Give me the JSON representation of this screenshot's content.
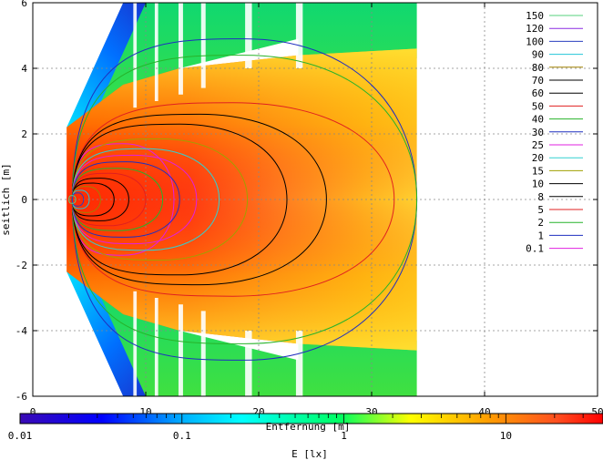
{
  "chart_data": {
    "type": "contour",
    "xlabel": "Entfernung [m]",
    "ylabel": "seitlich [m]",
    "xlim": [
      0,
      50
    ],
    "ylim": [
      -6,
      6
    ],
    "x_ticks": [
      0,
      10,
      20,
      30,
      40,
      50
    ],
    "y_ticks": [
      -6,
      -4,
      -2,
      0,
      2,
      4,
      6
    ],
    "grid": true,
    "legend_position": "top-right",
    "legend": [
      {
        "label": "150",
        "color": "#55d27e"
      },
      {
        "label": "120",
        "color": "#8a2be2"
      },
      {
        "label": "100",
        "color": "#2a3fbf"
      },
      {
        "label": "90",
        "color": "#22c6d8"
      },
      {
        "label": "80",
        "color": "#a08000"
      },
      {
        "label": "70",
        "color": "#000000"
      },
      {
        "label": "60",
        "color": "#000000"
      },
      {
        "label": "50",
        "color": "#e02020"
      },
      {
        "label": "40",
        "color": "#27b32a"
      },
      {
        "label": "30",
        "color": "#1f2fbf"
      },
      {
        "label": "25",
        "color": "#e020e0"
      },
      {
        "label": "20",
        "color": "#30d0d0"
      },
      {
        "label": "15",
        "color": "#a0a000"
      },
      {
        "label": "10",
        "color": "#000000"
      },
      {
        "label": "8",
        "color": "#000000"
      },
      {
        "label": "5",
        "color": "#e02020"
      },
      {
        "label": "2",
        "color": "#27b32a"
      },
      {
        "label": "1",
        "color": "#1f2fbf"
      },
      {
        "label": "0.1",
        "color": "#e020e0"
      }
    ],
    "colorbar": {
      "label": "E [lx]",
      "scale": "log",
      "tick_labels": [
        "0.01",
        "0.1",
        "1",
        "10"
      ],
      "colors": [
        "#3a0ab4",
        "#0000ff",
        "#00bfff",
        "#00ffff",
        "#00ff60",
        "#ffff00",
        "#ffa000",
        "#ff5020",
        "#ff0000"
      ]
    },
    "isolines": [
      {
        "level": "0.1",
        "color": "#e020e0",
        "x_range": [
          3.5,
          12.5
        ],
        "half_width": 1.7
      },
      {
        "level": "1",
        "color": "#1f2fbf",
        "x_range": [
          3.5,
          34
        ],
        "half_width": 4.9
      },
      {
        "level": "2",
        "color": "#27b32a",
        "x_range": [
          3.5,
          34
        ],
        "half_width": 4.4
      },
      {
        "level": "5",
        "color": "#e02020",
        "x_range": [
          3.5,
          32
        ],
        "half_width": 2.95
      },
      {
        "level": "8",
        "color": "#000000",
        "x_range": [
          3.5,
          26
        ],
        "half_width": 2.6
      },
      {
        "level": "10",
        "color": "#000000",
        "x_range": [
          3.5,
          22.5
        ],
        "half_width": 2.3
      },
      {
        "level": "15",
        "color": "#a0a000",
        "x_range": [
          3.5,
          19
        ],
        "half_width": 1.85
      },
      {
        "level": "20",
        "color": "#30d0d0",
        "x_range": [
          3.5,
          16.5
        ],
        "half_width": 1.55
      },
      {
        "level": "25",
        "color": "#e020e0",
        "x_range": [
          3.5,
          14.5
        ],
        "half_width": 1.35
      },
      {
        "level": "30",
        "color": "#1f2fbf",
        "x_range": [
          3.5,
          13
        ],
        "half_width": 1.15
      },
      {
        "level": "40",
        "color": "#27b32a",
        "x_range": [
          3.5,
          11.5
        ],
        "half_width": 0.95
      },
      {
        "level": "50",
        "color": "#e02020",
        "x_range": [
          3.5,
          10
        ],
        "half_width": 0.8
      },
      {
        "level": "60",
        "color": "#000000",
        "x_range": [
          3.5,
          8.5
        ],
        "half_width": 0.65
      },
      {
        "level": "70",
        "color": "#000000",
        "x_range": [
          3.5,
          7.2
        ],
        "half_width": 0.5
      },
      {
        "level": "80",
        "color": "#a08000",
        "x_range": [
          3.5,
          6.0
        ],
        "half_width": 0.4
      },
      {
        "level": "90",
        "color": "#22c6d8",
        "x_range": [
          3.5,
          5.0
        ],
        "half_width": 0.28
      },
      {
        "level": "100",
        "color": "#2a3fbf",
        "x_range": [
          3.5,
          4.5
        ],
        "half_width": 0.2
      },
      {
        "level": "150",
        "color": "#55d27e",
        "x_range": [
          3.2,
          3.8
        ],
        "half_width": 0.12
      }
    ]
  }
}
